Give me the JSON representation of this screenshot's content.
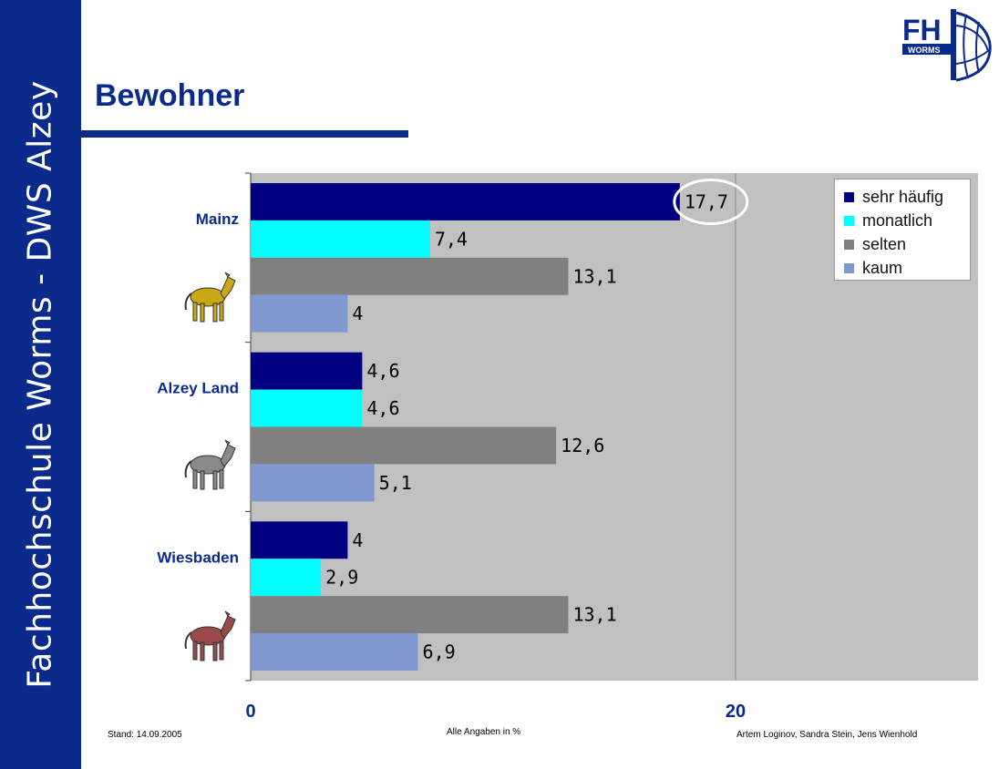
{
  "sidebar": {
    "text": "Fachhochschule Worms - DWS Alzey"
  },
  "logo": {
    "letters": "FH",
    "sub": "WORMS"
  },
  "header": {
    "title": "Bewohner"
  },
  "footer": {
    "stand": "Stand: 14.09.2005",
    "units": "Alle Angaben in %",
    "authors": "Artem Loginov, Sandra Stein, Jens Wienhold"
  },
  "chart_data": {
    "type": "bar",
    "orientation": "horizontal",
    "categories": [
      "Mainz",
      "Alzey Land",
      "Wiesbaden"
    ],
    "series": [
      {
        "name": "sehr häufig",
        "color": "#000080",
        "values": [
          17.7,
          4.6,
          4
        ],
        "labels": [
          "17,7",
          "4,6",
          "4"
        ]
      },
      {
        "name": "monatlich",
        "color": "#00ffff",
        "values": [
          7.4,
          4.6,
          2.9
        ],
        "labels": [
          "7,4",
          "4,6",
          "2,9"
        ]
      },
      {
        "name": "selten",
        "color": "#808080",
        "values": [
          13.1,
          12.6,
          13.1
        ],
        "labels": [
          "13,1",
          "12,6",
          "13,1"
        ]
      },
      {
        "name": "kaum",
        "color": "#8098d0",
        "values": [
          4,
          5.1,
          6.9
        ],
        "labels": [
          "4",
          "5,1",
          "6,9"
        ]
      }
    ],
    "xlim": [
      0,
      30
    ],
    "xticks": [
      0,
      20
    ],
    "xtick_labels": [
      "0",
      "20"
    ],
    "plot_background": "#c0c0c0",
    "grid": true,
    "legend_position": "top-right",
    "highlight": {
      "series": 0,
      "category": 0
    }
  },
  "horses": [
    {
      "category": "Mainz",
      "color": "#c8a814",
      "name": "horse-gold-icon"
    },
    {
      "category": "Alzey Land",
      "color": "#8a8a8a",
      "name": "horse-grey-icon"
    },
    {
      "category": "Wiesbaden",
      "color": "#9a4a4a",
      "name": "horse-red-icon"
    }
  ]
}
